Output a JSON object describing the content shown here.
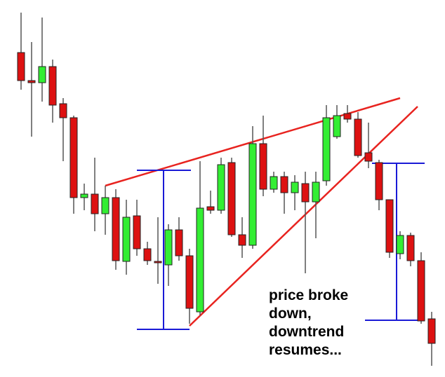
{
  "chart_data": {
    "type": "candlestick",
    "annotation": [
      "price broke",
      "down,",
      "downtrend",
      "resumes..."
    ],
    "up_color": "#33ee33",
    "down_color": "#dd1111",
    "open": [
      463,
      423,
      420,
      443,
      390,
      370,
      256,
      261,
      233,
      256,
      165,
      230,
      183,
      165,
      160,
      210,
      173,
      93,
      243,
      238,
      306,
      203,
      188,
      333,
      268,
      286,
      263,
      276,
      250,
      280,
      343,
      376,
      368,
      320,
      306,
      253,
      176,
      202,
      166,
      83
    ],
    "high": [
      520,
      478,
      513,
      453,
      398,
      373,
      276,
      313,
      273,
      268,
      253,
      253,
      193,
      228,
      218,
      228,
      183,
      308,
      266,
      313,
      313,
      228,
      358,
      373,
      293,
      293,
      288,
      293,
      293,
      388,
      388,
      388,
      378,
      363,
      310,
      253,
      208,
      206,
      178,
      93
    ],
    "low": [
      410,
      343,
      393,
      363,
      308,
      233,
      238,
      208,
      203,
      153,
      146,
      173,
      160,
      133,
      130,
      166,
      76,
      88,
      233,
      233,
      200,
      170,
      183,
      258,
      263,
      233,
      238,
      148,
      198,
      273,
      340,
      363,
      313,
      298,
      238,
      170,
      168,
      158,
      76,
      16
    ],
    "close": [
      423,
      420,
      443,
      388,
      370,
      256,
      261,
      233,
      256,
      166,
      228,
      183,
      166,
      163,
      210,
      173,
      98,
      241,
      238,
      303,
      203,
      188,
      333,
      268,
      286,
      263,
      278,
      250,
      278,
      370,
      373,
      368,
      316,
      308,
      253,
      178,
      202,
      166,
      80,
      48
    ]
  }
}
